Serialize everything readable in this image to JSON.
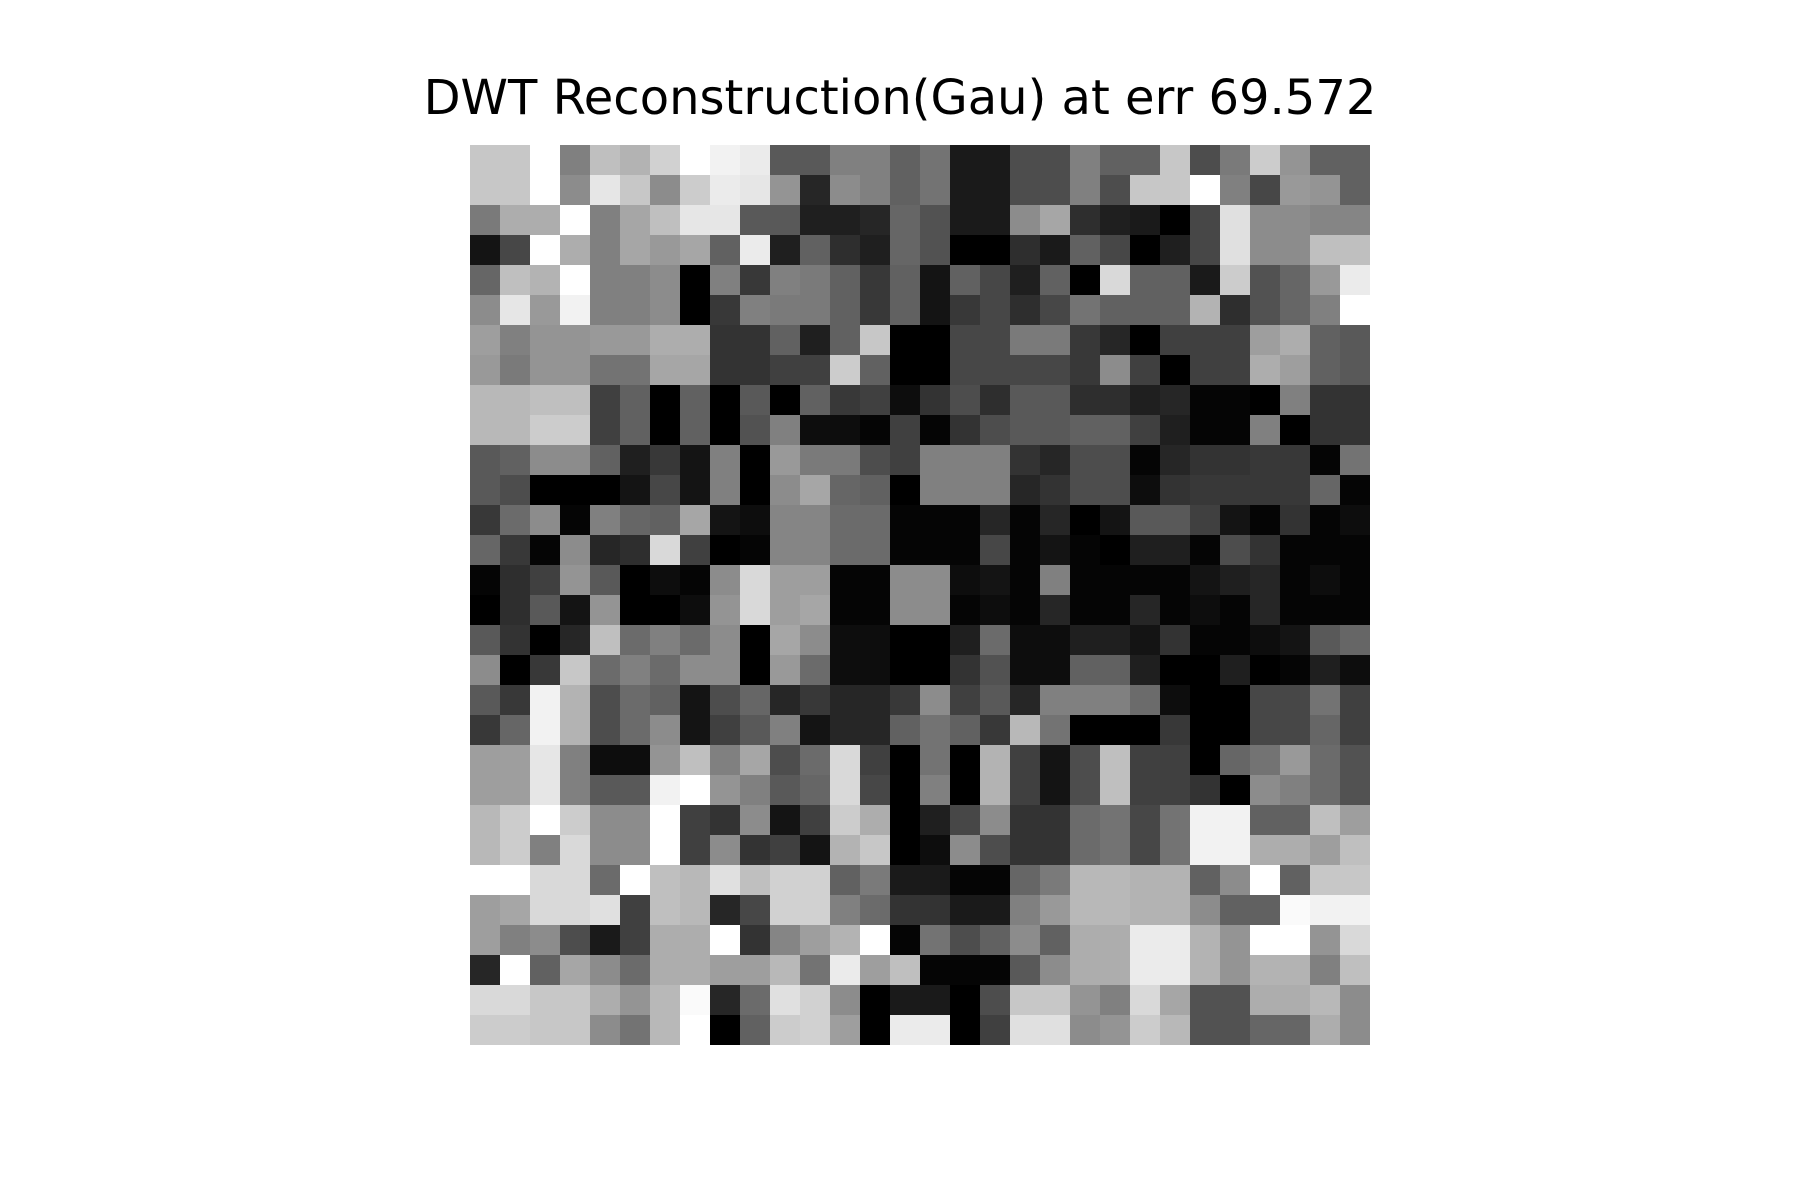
{
  "title": "DWT Reconstruction(Gau) at err 69.572",
  "chart_data": {
    "type": "heatmap",
    "title": "DWT Reconstruction(Gau) at err 69.572",
    "colormap": "gray",
    "axes_visible": false,
    "rows": 30,
    "cols": 30,
    "vmin": 0,
    "vmax": 1,
    "values": [
      [
        0.78,
        0.78,
        1.0,
        0.5,
        0.75,
        0.7,
        0.82,
        1.0,
        0.95,
        0.92,
        0.35,
        0.35,
        0.5,
        0.5,
        0.38,
        0.45,
        0.1,
        0.1,
        0.3,
        0.3,
        0.5,
        0.38,
        0.38,
        0.78,
        0.3,
        0.48,
        0.8,
        0.58,
        0.38,
        0.38
      ],
      [
        0.78,
        0.78,
        1.0,
        0.55,
        0.9,
        0.78,
        0.55,
        0.8,
        0.92,
        0.9,
        0.58,
        0.15,
        0.55,
        0.5,
        0.38,
        0.45,
        0.1,
        0.1,
        0.3,
        0.3,
        0.5,
        0.3,
        0.78,
        0.78,
        1.0,
        0.5,
        0.28,
        0.6,
        0.58,
        0.38
      ],
      [
        0.48,
        0.68,
        0.68,
        1.0,
        0.5,
        0.65,
        0.75,
        0.9,
        0.9,
        0.35,
        0.35,
        0.12,
        0.12,
        0.15,
        0.4,
        0.32,
        0.1,
        0.1,
        0.55,
        0.65,
        0.18,
        0.12,
        0.1,
        0.0,
        0.28,
        0.88,
        0.55,
        0.55,
        0.52,
        0.52
      ],
      [
        0.08,
        0.28,
        1.0,
        0.68,
        0.5,
        0.65,
        0.6,
        0.65,
        0.38,
        0.92,
        0.12,
        0.38,
        0.18,
        0.12,
        0.4,
        0.32,
        0.0,
        0.0,
        0.18,
        0.1,
        0.38,
        0.28,
        0.0,
        0.12,
        0.28,
        0.88,
        0.55,
        0.55,
        0.75,
        0.75
      ],
      [
        0.4,
        0.75,
        0.7,
        1.0,
        0.5,
        0.5,
        0.55,
        0.0,
        0.5,
        0.22,
        0.5,
        0.48,
        0.38,
        0.22,
        0.38,
        0.08,
        0.38,
        0.28,
        0.12,
        0.38,
        0.0,
        0.85,
        0.38,
        0.38,
        0.1,
        0.8,
        0.32,
        0.4,
        0.6,
        0.92
      ],
      [
        0.55,
        0.9,
        0.6,
        0.95,
        0.5,
        0.5,
        0.55,
        0.0,
        0.22,
        0.5,
        0.48,
        0.48,
        0.38,
        0.22,
        0.38,
        0.08,
        0.22,
        0.28,
        0.18,
        0.28,
        0.45,
        0.38,
        0.38,
        0.38,
        0.7,
        0.18,
        0.32,
        0.4,
        0.5,
        1.0
      ],
      [
        0.62,
        0.5,
        0.58,
        0.58,
        0.6,
        0.6,
        0.68,
        0.68,
        0.2,
        0.2,
        0.38,
        0.12,
        0.38,
        0.78,
        0.0,
        0.0,
        0.28,
        0.28,
        0.48,
        0.48,
        0.22,
        0.15,
        0.0,
        0.25,
        0.25,
        0.25,
        0.62,
        0.68,
        0.38,
        0.35
      ],
      [
        0.6,
        0.48,
        0.58,
        0.58,
        0.45,
        0.45,
        0.65,
        0.65,
        0.2,
        0.2,
        0.25,
        0.25,
        0.8,
        0.38,
        0.0,
        0.0,
        0.28,
        0.28,
        0.28,
        0.28,
        0.22,
        0.55,
        0.25,
        0.0,
        0.25,
        0.25,
        0.68,
        0.62,
        0.38,
        0.35
      ],
      [
        0.72,
        0.72,
        0.75,
        0.75,
        0.25,
        0.38,
        0.0,
        0.38,
        0.0,
        0.35,
        0.0,
        0.38,
        0.22,
        0.25,
        0.05,
        0.2,
        0.3,
        0.18,
        0.35,
        0.35,
        0.18,
        0.18,
        0.12,
        0.15,
        0.02,
        0.02,
        0.0,
        0.5,
        0.2,
        0.2
      ],
      [
        0.72,
        0.72,
        0.8,
        0.8,
        0.25,
        0.38,
        0.0,
        0.38,
        0.0,
        0.32,
        0.5,
        0.05,
        0.05,
        0.02,
        0.25,
        0.02,
        0.2,
        0.3,
        0.35,
        0.35,
        0.38,
        0.38,
        0.25,
        0.12,
        0.02,
        0.02,
        0.5,
        0.0,
        0.2,
        0.2
      ],
      [
        0.35,
        0.38,
        0.55,
        0.55,
        0.38,
        0.12,
        0.22,
        0.08,
        0.5,
        0.0,
        0.6,
        0.48,
        0.48,
        0.3,
        0.25,
        0.5,
        0.5,
        0.5,
        0.2,
        0.15,
        0.3,
        0.3,
        0.02,
        0.15,
        0.2,
        0.2,
        0.22,
        0.22,
        0.02,
        0.45
      ],
      [
        0.35,
        0.3,
        0.0,
        0.0,
        0.0,
        0.08,
        0.28,
        0.08,
        0.5,
        0.0,
        0.55,
        0.65,
        0.4,
        0.38,
        0.0,
        0.5,
        0.5,
        0.5,
        0.15,
        0.2,
        0.3,
        0.3,
        0.05,
        0.2,
        0.22,
        0.22,
        0.22,
        0.22,
        0.4,
        0.02
      ],
      [
        0.22,
        0.42,
        0.55,
        0.02,
        0.5,
        0.4,
        0.38,
        0.65,
        0.08,
        0.05,
        0.52,
        0.52,
        0.42,
        0.42,
        0.02,
        0.02,
        0.02,
        0.15,
        0.02,
        0.15,
        0.0,
        0.08,
        0.35,
        0.35,
        0.25,
        0.08,
        0.02,
        0.2,
        0.02,
        0.05
      ],
      [
        0.4,
        0.22,
        0.02,
        0.55,
        0.15,
        0.18,
        0.85,
        0.25,
        0.0,
        0.02,
        0.52,
        0.52,
        0.42,
        0.42,
        0.02,
        0.02,
        0.02,
        0.28,
        0.02,
        0.08,
        0.02,
        0.0,
        0.12,
        0.12,
        0.02,
        0.3,
        0.2,
        0.02,
        0.02,
        0.02
      ],
      [
        0.02,
        0.18,
        0.25,
        0.58,
        0.35,
        0.0,
        0.05,
        0.02,
        0.55,
        0.85,
        0.62,
        0.62,
        0.02,
        0.02,
        0.55,
        0.55,
        0.05,
        0.08,
        0.02,
        0.5,
        0.02,
        0.02,
        0.02,
        0.02,
        0.08,
        0.12,
        0.15,
        0.02,
        0.05,
        0.02
      ],
      [
        0.0,
        0.18,
        0.35,
        0.08,
        0.58,
        0.0,
        0.0,
        0.05,
        0.58,
        0.85,
        0.62,
        0.65,
        0.02,
        0.02,
        0.55,
        0.55,
        0.02,
        0.05,
        0.02,
        0.15,
        0.02,
        0.02,
        0.15,
        0.02,
        0.05,
        0.02,
        0.15,
        0.02,
        0.02,
        0.02
      ],
      [
        0.35,
        0.2,
        0.0,
        0.15,
        0.75,
        0.42,
        0.5,
        0.42,
        0.55,
        0.0,
        0.65,
        0.55,
        0.05,
        0.05,
        0.0,
        0.0,
        0.12,
        0.42,
        0.05,
        0.05,
        0.12,
        0.12,
        0.08,
        0.2,
        0.02,
        0.02,
        0.05,
        0.08,
        0.35,
        0.4
      ],
      [
        0.55,
        0.0,
        0.22,
        0.78,
        0.42,
        0.5,
        0.42,
        0.55,
        0.55,
        0.0,
        0.6,
        0.42,
        0.05,
        0.05,
        0.0,
        0.0,
        0.2,
        0.32,
        0.05,
        0.05,
        0.38,
        0.38,
        0.12,
        0.0,
        0.0,
        0.12,
        0.0,
        0.02,
        0.12,
        0.05
      ],
      [
        0.35,
        0.22,
        0.95,
        0.7,
        0.3,
        0.42,
        0.38,
        0.08,
        0.3,
        0.4,
        0.15,
        0.22,
        0.15,
        0.15,
        0.22,
        0.55,
        0.25,
        0.35,
        0.15,
        0.5,
        0.5,
        0.5,
        0.42,
        0.05,
        0.0,
        0.0,
        0.28,
        0.28,
        0.45,
        0.25
      ],
      [
        0.22,
        0.4,
        0.95,
        0.7,
        0.3,
        0.42,
        0.55,
        0.08,
        0.25,
        0.35,
        0.5,
        0.08,
        0.15,
        0.15,
        0.38,
        0.45,
        0.38,
        0.22,
        0.72,
        0.45,
        0.0,
        0.0,
        0.0,
        0.22,
        0.0,
        0.0,
        0.28,
        0.28,
        0.4,
        0.25
      ],
      [
        0.62,
        0.62,
        0.9,
        0.5,
        0.05,
        0.05,
        0.58,
        0.75,
        0.5,
        0.65,
        0.3,
        0.42,
        0.85,
        0.25,
        0.0,
        0.45,
        0.0,
        0.7,
        0.25,
        0.08,
        0.3,
        0.75,
        0.25,
        0.25,
        0.0,
        0.4,
        0.45,
        0.6,
        0.42,
        0.32
      ],
      [
        0.62,
        0.62,
        0.9,
        0.5,
        0.35,
        0.35,
        0.95,
        1.0,
        0.58,
        0.5,
        0.35,
        0.4,
        0.85,
        0.28,
        0.0,
        0.5,
        0.0,
        0.7,
        0.25,
        0.08,
        0.3,
        0.75,
        0.25,
        0.25,
        0.2,
        0.0,
        0.55,
        0.5,
        0.42,
        0.32
      ],
      [
        0.72,
        0.8,
        1.0,
        0.8,
        0.55,
        0.55,
        1.0,
        0.25,
        0.2,
        0.55,
        0.08,
        0.25,
        0.8,
        0.68,
        0.0,
        0.12,
        0.28,
        0.55,
        0.2,
        0.2,
        0.42,
        0.45,
        0.28,
        0.45,
        0.95,
        0.95,
        0.38,
        0.38,
        0.75,
        0.62
      ],
      [
        0.72,
        0.8,
        0.5,
        0.85,
        0.55,
        0.55,
        1.0,
        0.25,
        0.55,
        0.2,
        0.25,
        0.08,
        0.7,
        0.78,
        0.0,
        0.05,
        0.55,
        0.3,
        0.2,
        0.2,
        0.42,
        0.45,
        0.28,
        0.45,
        0.95,
        0.95,
        0.68,
        0.68,
        0.62,
        0.75
      ],
      [
        1.0,
        1.0,
        0.85,
        0.85,
        0.42,
        1.0,
        0.75,
        0.72,
        0.88,
        0.75,
        0.82,
        0.82,
        0.38,
        0.48,
        0.1,
        0.1,
        0.02,
        0.02,
        0.4,
        0.48,
        0.72,
        0.72,
        0.7,
        0.7,
        0.38,
        0.55,
        1.0,
        0.38,
        0.78,
        0.78
      ],
      [
        0.62,
        0.65,
        0.85,
        0.85,
        0.88,
        0.25,
        0.75,
        0.72,
        0.15,
        0.28,
        0.82,
        0.82,
        0.5,
        0.42,
        0.2,
        0.2,
        0.1,
        0.1,
        0.5,
        0.6,
        0.72,
        0.72,
        0.7,
        0.7,
        0.55,
        0.38,
        0.38,
        0.98,
        0.95,
        0.95
      ],
      [
        0.62,
        0.5,
        0.55,
        0.3,
        0.1,
        0.25,
        0.68,
        0.68,
        1.0,
        0.2,
        0.52,
        0.62,
        0.7,
        1.0,
        0.02,
        0.45,
        0.3,
        0.38,
        0.55,
        0.38,
        0.68,
        0.68,
        0.92,
        0.92,
        0.7,
        0.58,
        1.0,
        1.0,
        0.58,
        0.85
      ],
      [
        0.15,
        1.0,
        0.38,
        0.65,
        0.55,
        0.42,
        0.68,
        0.68,
        0.62,
        0.62,
        0.72,
        0.45,
        0.92,
        0.62,
        0.75,
        0.02,
        0.02,
        0.02,
        0.35,
        0.55,
        0.68,
        0.68,
        0.92,
        0.92,
        0.7,
        0.58,
        0.7,
        0.7,
        0.5,
        0.75
      ],
      [
        0.85,
        0.85,
        0.78,
        0.78,
        0.68,
        0.58,
        0.72,
        0.98,
        0.15,
        0.42,
        0.88,
        0.82,
        0.55,
        0.0,
        0.1,
        0.1,
        0.0,
        0.3,
        0.78,
        0.78,
        0.58,
        0.5,
        0.85,
        0.65,
        0.32,
        0.32,
        0.68,
        0.68,
        0.72,
        0.55
      ],
      [
        0.8,
        0.8,
        0.78,
        0.78,
        0.55,
        0.45,
        0.72,
        1.0,
        0.0,
        0.38,
        0.8,
        0.82,
        0.62,
        0.0,
        0.92,
        0.92,
        0.0,
        0.25,
        0.88,
        0.88,
        0.55,
        0.58,
        0.8,
        0.72,
        0.32,
        0.32,
        0.4,
        0.4,
        0.68,
        0.55
      ]
    ]
  }
}
